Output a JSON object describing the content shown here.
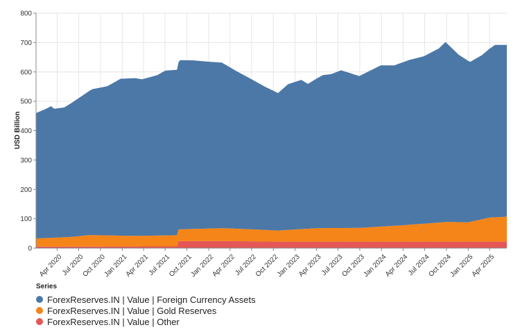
{
  "chart_data": {
    "type": "area",
    "stacked": true,
    "ylabel": "USD Billion",
    "ylim": [
      0,
      800
    ],
    "yticks": [
      0,
      100,
      200,
      300,
      400,
      500,
      600,
      700,
      800
    ],
    "xlim": [
      "2020-01-03",
      "2025-06-13"
    ],
    "xticks": [
      {
        "date": "2020-04-01",
        "label": "Apr 2020"
      },
      {
        "date": "2020-07-01",
        "label": "Jul 2020"
      },
      {
        "date": "2020-10-01",
        "label": "Oct 2020"
      },
      {
        "date": "2021-01-01",
        "label": "Jan 2021"
      },
      {
        "date": "2021-04-01",
        "label": "Apr 2021"
      },
      {
        "date": "2021-07-01",
        "label": "Jul 2021"
      },
      {
        "date": "2021-10-01",
        "label": "Oct 2021"
      },
      {
        "date": "2022-01-01",
        "label": "Jan 2022"
      },
      {
        "date": "2022-04-01",
        "label": "Apr 2022"
      },
      {
        "date": "2022-07-01",
        "label": "Jul 2022"
      },
      {
        "date": "2022-10-01",
        "label": "Oct 2022"
      },
      {
        "date": "2023-01-01",
        "label": "Jan 2023"
      },
      {
        "date": "2023-04-01",
        "label": "Apr 2023"
      },
      {
        "date": "2023-07-01",
        "label": "Jul 2023"
      },
      {
        "date": "2023-10-01",
        "label": "Oct 2023"
      },
      {
        "date": "2024-01-01",
        "label": "Jan 2024"
      },
      {
        "date": "2024-04-01",
        "label": "Apr 2024"
      },
      {
        "date": "2024-07-01",
        "label": "Jul 2024"
      },
      {
        "date": "2024-10-01",
        "label": "Oct 2024"
      },
      {
        "date": "2025-01-01",
        "label": "Jan 2025"
      },
      {
        "date": "2025-04-01",
        "label": "Apr 2025"
      }
    ],
    "legend": {
      "title": "Series",
      "position": "bottom-left"
    },
    "grid": true,
    "series": [
      {
        "name": "ForexReserves.IN | Value | Other",
        "color": "#e45756",
        "points": [
          [
            "2020-01-03",
            5
          ],
          [
            "2021-08-20",
            6
          ],
          [
            "2021-08-27",
            24
          ],
          [
            "2022-04-01",
            24
          ],
          [
            "2022-10-21",
            22
          ],
          [
            "2023-06-01",
            22
          ],
          [
            "2024-06-01",
            22
          ],
          [
            "2025-01-01",
            22
          ],
          [
            "2025-06-13",
            22
          ]
        ]
      },
      {
        "name": "ForexReserves.IN | Value | Gold Reserves",
        "color": "#f58518",
        "points": [
          [
            "2020-01-03",
            28
          ],
          [
            "2020-06-01",
            33
          ],
          [
            "2020-08-14",
            39
          ],
          [
            "2021-03-01",
            36
          ],
          [
            "2021-08-20",
            38
          ],
          [
            "2021-08-27",
            40
          ],
          [
            "2022-03-01",
            44
          ],
          [
            "2022-10-21",
            38
          ],
          [
            "2023-04-01",
            46
          ],
          [
            "2023-10-01",
            47
          ],
          [
            "2024-04-01",
            56
          ],
          [
            "2024-10-01",
            67
          ],
          [
            "2025-01-01",
            66
          ],
          [
            "2025-04-01",
            82
          ],
          [
            "2025-06-13",
            85
          ]
        ]
      },
      {
        "name": "ForexReserves.IN | Value | Foreign Currency Assets",
        "color": "#4c78a8",
        "points": [
          [
            "2020-01-03",
            427
          ],
          [
            "2020-02-14",
            440
          ],
          [
            "2020-03-06",
            448
          ],
          [
            "2020-03-20",
            439
          ],
          [
            "2020-05-01",
            442
          ],
          [
            "2020-07-03",
            471
          ],
          [
            "2020-08-28",
            497
          ],
          [
            "2020-10-30",
            508
          ],
          [
            "2020-12-25",
            534
          ],
          [
            "2021-02-26",
            537
          ],
          [
            "2021-03-26",
            533
          ],
          [
            "2021-05-28",
            546
          ],
          [
            "2021-07-02",
            561
          ],
          [
            "2021-08-20",
            563
          ],
          [
            "2021-09-03",
            576
          ],
          [
            "2021-10-29",
            574
          ],
          [
            "2021-12-31",
            568
          ],
          [
            "2022-02-25",
            564
          ],
          [
            "2022-04-29",
            536
          ],
          [
            "2022-06-24",
            514
          ],
          [
            "2022-08-26",
            488
          ],
          [
            "2022-10-21",
            468
          ],
          [
            "2022-12-02",
            496
          ],
          [
            "2023-01-27",
            508
          ],
          [
            "2023-02-24",
            493
          ],
          [
            "2023-04-28",
            521
          ],
          [
            "2023-06-02",
            524
          ],
          [
            "2023-07-14",
            537
          ],
          [
            "2023-09-29",
            517
          ],
          [
            "2023-12-29",
            549
          ],
          [
            "2024-02-23",
            546
          ],
          [
            "2024-04-26",
            561
          ],
          [
            "2024-06-28",
            570
          ],
          [
            "2024-08-30",
            593
          ],
          [
            "2024-09-27",
            613
          ],
          [
            "2024-11-22",
            570
          ],
          [
            "2025-01-10",
            545
          ],
          [
            "2025-02-28",
            559
          ],
          [
            "2025-04-25",
            587
          ],
          [
            "2025-06-13",
            585
          ]
        ]
      }
    ]
  }
}
